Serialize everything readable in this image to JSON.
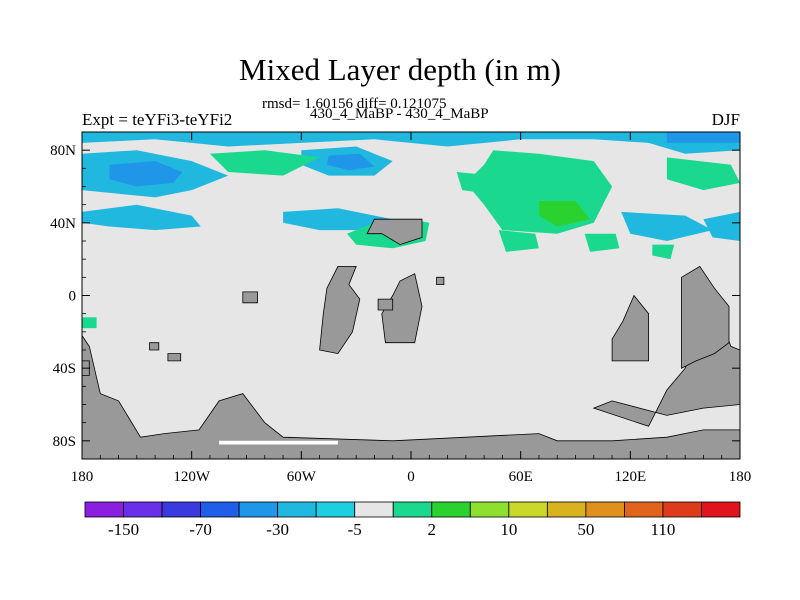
{
  "chart_data": {
    "type": "heatmap",
    "title": "Mixed Layer depth (in m)",
    "stats": "rmsd= 1.60156 diff= 0.121075",
    "subtitle": "430_4_MaBP - 430_4_MaBP",
    "left_label": "Expt = teYFi3-teYFi2",
    "right_label": "DJF",
    "x_range": [
      -180,
      180
    ],
    "y_range": [
      -90,
      90
    ],
    "x_ticks": [
      {
        "value": -180,
        "label": "180"
      },
      {
        "value": -120,
        "label": "120W"
      },
      {
        "value": -60,
        "label": "60W"
      },
      {
        "value": 0,
        "label": "0"
      },
      {
        "value": 60,
        "label": "60E"
      },
      {
        "value": 120,
        "label": "120E"
      },
      {
        "value": 180,
        "label": "180"
      }
    ],
    "y_ticks": [
      {
        "value": 80,
        "label": "80N"
      },
      {
        "value": 40,
        "label": "40N"
      },
      {
        "value": 0,
        "label": "0"
      },
      {
        "value": -40,
        "label": "40S"
      },
      {
        "value": -80,
        "label": "80S"
      }
    ],
    "colorbar": {
      "colors": [
        "#8a1fe0",
        "#6a2fe8",
        "#3a3adf",
        "#1e5ee8",
        "#1f96e8",
        "#21b8e0",
        "#1ecfe0",
        "#e6e6e6",
        "#1bd88f",
        "#2bd12e",
        "#8fe02e",
        "#c9d82a",
        "#d8b31f",
        "#e0901c",
        "#e0641c",
        "#dd3b1c",
        "#e0141c"
      ],
      "labels": [
        "-150",
        "-70",
        "-30",
        "-5",
        "2",
        "10",
        "50",
        "110"
      ]
    },
    "field_legend": {
      "background": "#e6e6e6",
      "land": "#999999"
    },
    "regions": [
      {
        "name": "arctic-shallowing",
        "color": "#21b8e0",
        "pts": [
          [
            -180,
            90
          ],
          [
            180,
            90
          ],
          [
            180,
            80
          ],
          [
            150,
            78
          ],
          [
            130,
            84
          ],
          [
            100,
            86
          ],
          [
            60,
            86
          ],
          [
            20,
            82
          ],
          [
            -20,
            86
          ],
          [
            -60,
            84
          ],
          [
            -100,
            82
          ],
          [
            -140,
            86
          ],
          [
            -180,
            84
          ]
        ]
      },
      {
        "name": "arctic-deep-strip",
        "color": "#1f96e8",
        "pts": [
          [
            140,
            90
          ],
          [
            180,
            90
          ],
          [
            180,
            84
          ],
          [
            140,
            84
          ]
        ]
      },
      {
        "name": "north-pacific-shallowing",
        "color": "#21b8e0",
        "pts": [
          [
            -180,
            78
          ],
          [
            -150,
            80
          ],
          [
            -120,
            74
          ],
          [
            -100,
            66
          ],
          [
            -120,
            58
          ],
          [
            -140,
            54
          ],
          [
            -160,
            56
          ],
          [
            -180,
            58
          ]
        ]
      },
      {
        "name": "north-pacific-core",
        "color": "#1f96e8",
        "pts": [
          [
            -165,
            72
          ],
          [
            -140,
            74
          ],
          [
            -125,
            68
          ],
          [
            -130,
            62
          ],
          [
            -150,
            60
          ],
          [
            -165,
            64
          ]
        ]
      },
      {
        "name": "north-atlantic-shallowing",
        "color": "#21b8e0",
        "pts": [
          [
            -60,
            80
          ],
          [
            -30,
            82
          ],
          [
            -10,
            74
          ],
          [
            -20,
            66
          ],
          [
            -45,
            66
          ],
          [
            -60,
            72
          ]
        ]
      },
      {
        "name": "north-atlantic-core",
        "color": "#1f96e8",
        "pts": [
          [
            -45,
            77
          ],
          [
            -28,
            78
          ],
          [
            -20,
            71
          ],
          [
            -34,
            69
          ],
          [
            -46,
            72
          ]
        ]
      },
      {
        "name": "midlat-pacific-shallowing",
        "color": "#21b8e0",
        "pts": [
          [
            -180,
            46
          ],
          [
            -150,
            50
          ],
          [
            -120,
            44
          ],
          [
            -115,
            38
          ],
          [
            -140,
            36
          ],
          [
            -165,
            38
          ],
          [
            -180,
            40
          ]
        ]
      },
      {
        "name": "midlat-atlantic-shallowing",
        "color": "#21b8e0",
        "pts": [
          [
            -70,
            46
          ],
          [
            -40,
            48
          ],
          [
            -10,
            42
          ],
          [
            -20,
            36
          ],
          [
            -50,
            36
          ],
          [
            -70,
            40
          ]
        ]
      },
      {
        "name": "east-pacific-shallowing",
        "color": "#21b8e0",
        "pts": [
          [
            115,
            46
          ],
          [
            150,
            44
          ],
          [
            165,
            36
          ],
          [
            140,
            30
          ],
          [
            120,
            34
          ]
        ]
      },
      {
        "name": "far-east-pacific-shallowing",
        "color": "#21b8e0",
        "pts": [
          [
            160,
            42
          ],
          [
            180,
            46
          ],
          [
            180,
            30
          ],
          [
            165,
            32
          ]
        ]
      },
      {
        "name": "siberia-deepening",
        "color": "#1bd88f",
        "pts": [
          [
            45,
            80
          ],
          [
            70,
            78
          ],
          [
            100,
            74
          ],
          [
            110,
            60
          ],
          [
            100,
            40
          ],
          [
            80,
            34
          ],
          [
            50,
            36
          ],
          [
            40,
            50
          ],
          [
            30,
            62
          ],
          [
            40,
            72
          ]
        ]
      },
      {
        "name": "siberia-core",
        "color": "#2bd12e",
        "pts": [
          [
            70,
            52
          ],
          [
            90,
            52
          ],
          [
            98,
            42
          ],
          [
            80,
            38
          ],
          [
            70,
            44
          ]
        ]
      },
      {
        "name": "europe-deepening",
        "color": "#1bd88f",
        "pts": [
          [
            -20,
            40
          ],
          [
            0,
            42
          ],
          [
            10,
            40
          ],
          [
            8,
            30
          ],
          [
            -10,
            26
          ],
          [
            -30,
            28
          ],
          [
            -35,
            34
          ]
        ]
      },
      {
        "name": "north-atlantic-deepening",
        "color": "#1bd88f",
        "pts": [
          [
            -110,
            78
          ],
          [
            -80,
            80
          ],
          [
            -50,
            76
          ],
          [
            -70,
            66
          ],
          [
            -100,
            68
          ]
        ]
      },
      {
        "name": "east-pacific-deepening",
        "color": "#1bd88f",
        "pts": [
          [
            140,
            76
          ],
          [
            175,
            72
          ],
          [
            180,
            62
          ],
          [
            160,
            58
          ],
          [
            140,
            64
          ]
        ]
      },
      {
        "name": "central-deepening",
        "color": "#1bd88f",
        "pts": [
          [
            25,
            68
          ],
          [
            45,
            66
          ],
          [
            42,
            56
          ],
          [
            28,
            58
          ]
        ]
      },
      {
        "name": "mideast-deepening",
        "color": "#1bd88f",
        "pts": [
          [
            48,
            36
          ],
          [
            68,
            34
          ],
          [
            70,
            26
          ],
          [
            52,
            24
          ]
        ]
      },
      {
        "name": "pacific-deepening-patch",
        "color": "#1bd88f",
        "pts": [
          [
            95,
            34
          ],
          [
            112,
            34
          ],
          [
            114,
            26
          ],
          [
            98,
            24
          ]
        ]
      },
      {
        "name": "tropical-deepening",
        "color": "#1bd88f",
        "pts": [
          [
            -180,
            -12
          ],
          [
            -172,
            -12
          ],
          [
            -172,
            -18
          ],
          [
            -180,
            -18
          ]
        ]
      },
      {
        "name": "south-pacific-deepening",
        "color": "#1bd88f",
        "pts": [
          [
            132,
            28
          ],
          [
            144,
            28
          ],
          [
            142,
            20
          ],
          [
            132,
            22
          ]
        ]
      }
    ],
    "land": [
      {
        "name": "antarctica",
        "pts": [
          [
            -180,
            -90
          ],
          [
            180,
            -90
          ],
          [
            180,
            -74
          ],
          [
            160,
            -74
          ],
          [
            140,
            -78
          ],
          [
            110,
            -80
          ],
          [
            80,
            -80
          ],
          [
            70,
            -76
          ],
          [
            -10,
            -80
          ],
          [
            -70,
            -78
          ],
          [
            -80,
            -70
          ],
          [
            -92,
            -54
          ],
          [
            -105,
            -58
          ],
          [
            -116,
            -74
          ],
          [
            -135,
            -76
          ],
          [
            -148,
            -78
          ],
          [
            -160,
            -58
          ],
          [
            -170,
            -54
          ],
          [
            -176,
            -28
          ],
          [
            -180,
            -22
          ]
        ]
      },
      {
        "name": "antarctic-shelf-gap",
        "pts": [
          [
            -105,
            -80
          ],
          [
            -40,
            -80
          ],
          [
            -40,
            -82
          ],
          [
            -105,
            -82
          ]
        ],
        "color": "#ffffff"
      },
      {
        "name": "south-pacific-rim",
        "pts": [
          [
            100,
            -62
          ],
          [
            130,
            -72
          ],
          [
            140,
            -52
          ],
          [
            150,
            -40
          ],
          [
            158,
            -20
          ],
          [
            160,
            -14
          ],
          [
            170,
            -14
          ],
          [
            175,
            -28
          ],
          [
            180,
            -30
          ],
          [
            180,
            -60
          ],
          [
            160,
            -62
          ],
          [
            140,
            -66
          ],
          [
            110,
            -58
          ]
        ]
      },
      {
        "name": "east-landmass",
        "pts": [
          [
            148,
            -40
          ],
          [
            148,
            10
          ],
          [
            158,
            16
          ],
          [
            166,
            4
          ],
          [
            174,
            -6
          ],
          [
            174,
            -26
          ],
          [
            166,
            -32
          ],
          [
            156,
            -36
          ]
        ]
      },
      {
        "name": "indonesia-block",
        "pts": [
          [
            110,
            -36
          ],
          [
            130,
            -36
          ],
          [
            130,
            -10
          ],
          [
            122,
            0
          ],
          [
            116,
            -14
          ],
          [
            110,
            -24
          ]
        ]
      },
      {
        "name": "africa-west-block",
        "pts": [
          [
            -50,
            -30
          ],
          [
            -40,
            -32
          ],
          [
            -32,
            -20
          ],
          [
            -28,
            -2
          ],
          [
            -34,
            6
          ],
          [
            -30,
            16
          ],
          [
            -40,
            16
          ],
          [
            -46,
            4
          ],
          [
            -48,
            -10
          ]
        ]
      },
      {
        "name": "africa-east-block",
        "pts": [
          [
            -14,
            -26
          ],
          [
            2,
            -26
          ],
          [
            6,
            -6
          ],
          [
            2,
            12
          ],
          [
            -6,
            8
          ],
          [
            -10,
            0
          ],
          [
            -16,
            -10
          ]
        ]
      },
      {
        "name": "small-block-1",
        "pts": [
          [
            -92,
            2
          ],
          [
            -84,
            2
          ],
          [
            -84,
            -4
          ],
          [
            -92,
            -4
          ]
        ]
      },
      {
        "name": "small-block-2",
        "pts": [
          [
            -18,
            -2
          ],
          [
            -10,
            -2
          ],
          [
            -10,
            -8
          ],
          [
            -18,
            -8
          ]
        ]
      },
      {
        "name": "small-block-3",
        "pts": [
          [
            -143,
            -26
          ],
          [
            -138,
            -26
          ],
          [
            -138,
            -30
          ],
          [
            -143,
            -30
          ]
        ]
      },
      {
        "name": "small-block-4",
        "pts": [
          [
            -133,
            -32
          ],
          [
            -126,
            -32
          ],
          [
            -126,
            -36
          ],
          [
            -133,
            -36
          ]
        ]
      },
      {
        "name": "north-block",
        "pts": [
          [
            -20,
            42
          ],
          [
            6,
            42
          ],
          [
            6,
            32
          ],
          [
            -6,
            28
          ],
          [
            -16,
            34
          ],
          [
            -24,
            34
          ]
        ]
      },
      {
        "name": "small-block-5",
        "pts": [
          [
            14,
            10
          ],
          [
            18,
            10
          ],
          [
            18,
            6
          ],
          [
            14,
            6
          ]
        ]
      },
      {
        "name": "small-block-6",
        "pts": [
          [
            -176,
            -36
          ],
          [
            -180,
            -36
          ],
          [
            -180,
            -44
          ],
          [
            -176,
            -44
          ]
        ]
      }
    ]
  }
}
